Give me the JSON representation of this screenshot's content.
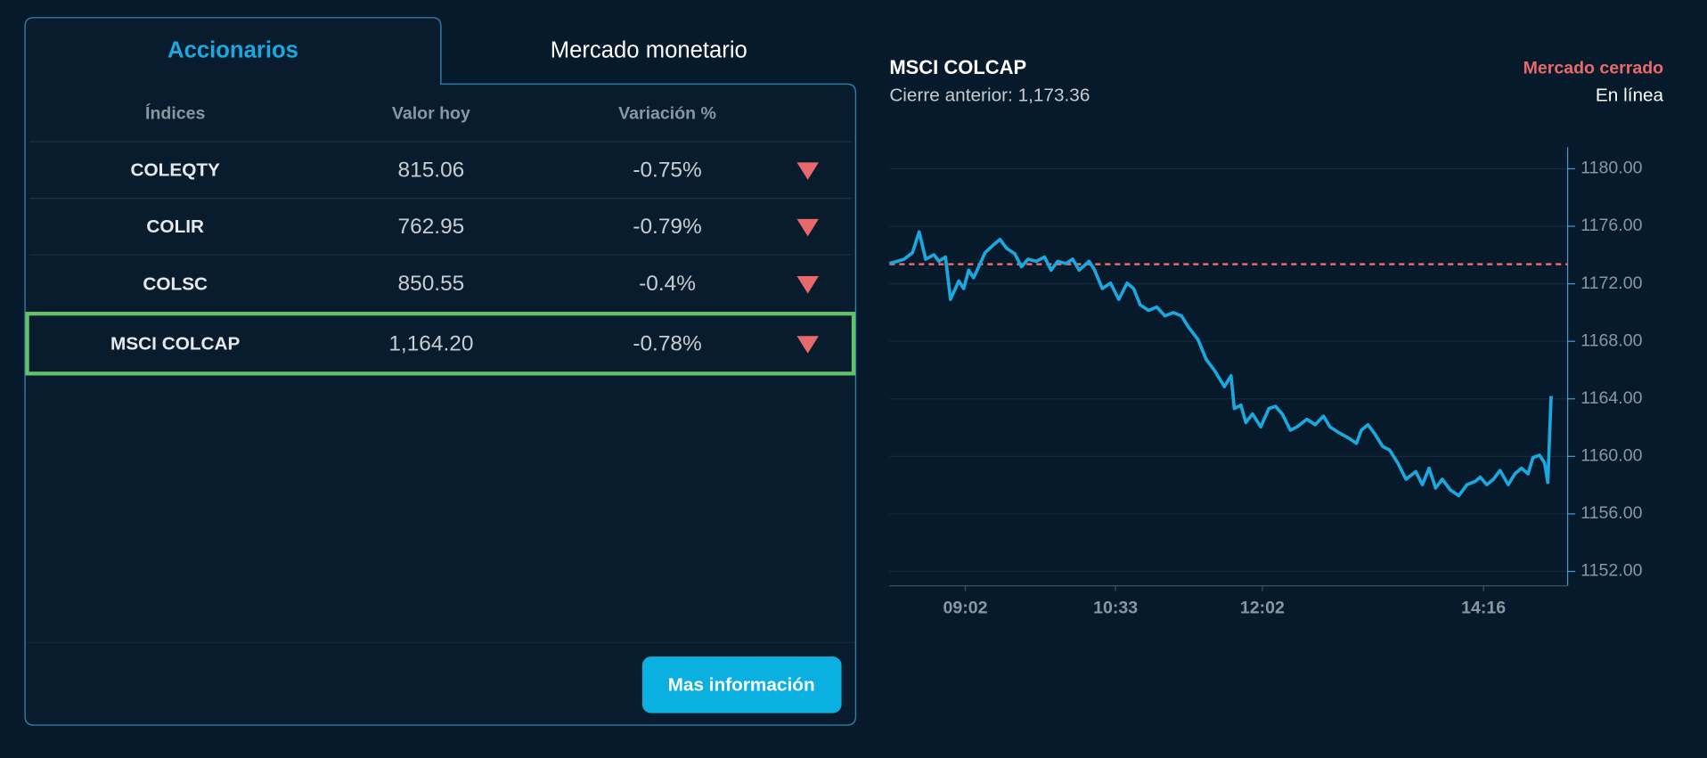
{
  "tabs": [
    "Accionarios",
    "Mercado monetario"
  ],
  "active_tab": 0,
  "table": {
    "headers": [
      "Índices",
      "Valor hoy",
      "Variación %"
    ],
    "rows": [
      [
        "COLEQTY",
        "815.06",
        "-0.75%"
      ],
      [
        "COLIR",
        "762.95",
        "-0.79%"
      ],
      [
        "COLSC",
        "850.55",
        "-0.4%"
      ],
      [
        "MSCI COLCAP",
        "1,164.20",
        "-0.78%"
      ]
    ],
    "selected_row": 3
  },
  "button": "Mas información",
  "chart_data": {
    "type": "line",
    "title": "MSCI COLCAP",
    "subtitle": "Cierre anterior: 1,173.36",
    "status": "Mercado cerrado",
    "status_detail": "En línea",
    "reference_line": 1173.36,
    "reference_color": "#e86a6a",
    "x": [
      496,
      505,
      510,
      514,
      518,
      523,
      526,
      530,
      533,
      538,
      541,
      544,
      547,
      551,
      554,
      559,
      563,
      567,
      572,
      576,
      580,
      585,
      590,
      594,
      598,
      603,
      607,
      611,
      617,
      620,
      625,
      630,
      635,
      640,
      644,
      648,
      653,
      658,
      663,
      668,
      673,
      677,
      683,
      688,
      693,
      699,
      703,
      705,
      709,
      712,
      716,
      721,
      726,
      730,
      734,
      739,
      743,
      749,
      754,
      759,
      763,
      768,
      774,
      779,
      782,
      786,
      790,
      795,
      799,
      804,
      809,
      815,
      819,
      823,
      827,
      831,
      836,
      841,
      846,
      851,
      854,
      858,
      862,
      866,
      871,
      875,
      879,
      883,
      886,
      890,
      893,
      895,
      897
    ],
    "series": [
      {
        "color": "#1aa8de",
        "values": [
          1173.41,
          1173.71,
          1174.17,
          1175.61,
          1173.71,
          1174.02,
          1173.56,
          1173.86,
          1170.91,
          1172.2,
          1171.67,
          1172.95,
          1172.42,
          1173.41,
          1174.17,
          1174.7,
          1175.08,
          1174.47,
          1174.09,
          1173.18,
          1173.71,
          1173.56,
          1173.86,
          1172.95,
          1173.56,
          1173.41,
          1173.71,
          1172.95,
          1173.56,
          1173.03,
          1171.67,
          1172.05,
          1170.91,
          1172.05,
          1171.67,
          1170.53,
          1170.15,
          1170.38,
          1169.77,
          1170,
          1169.77,
          1169.02,
          1168.11,
          1166.74,
          1165.98,
          1164.85,
          1165.61,
          1163.33,
          1163.56,
          1162.35,
          1162.95,
          1162.05,
          1163.33,
          1163.48,
          1162.95,
          1161.82,
          1162.05,
          1162.58,
          1162.2,
          1162.8,
          1162.05,
          1161.67,
          1161.29,
          1160.91,
          1161.82,
          1162.2,
          1161.59,
          1160.68,
          1160.45,
          1159.55,
          1158.41,
          1158.94,
          1158.03,
          1159.17,
          1157.8,
          1158.41,
          1157.65,
          1157.27,
          1158.03,
          1158.26,
          1158.56,
          1158.03,
          1158.41,
          1159.02,
          1158.03,
          1158.79,
          1159.17,
          1158.79,
          1159.92,
          1160.08,
          1159.55,
          1158.18,
          1164.2
        ]
      }
    ],
    "xlim": [
      496,
      907
    ],
    "xticks": [
      {
        "value": 542,
        "label": "09:02"
      },
      {
        "value": 633,
        "label": "10:33"
      },
      {
        "value": 722,
        "label": "12:02"
      },
      {
        "value": 856,
        "label": "14:16"
      }
    ],
    "ylim": [
      1151,
      1181.5
    ],
    "yticks": [
      {
        "value": 1152,
        "label": "1152.00"
      },
      {
        "value": 1156,
        "label": "1156.00"
      },
      {
        "value": 1160,
        "label": "1160.00"
      },
      {
        "value": 1164,
        "label": "1164.00"
      },
      {
        "value": 1168,
        "label": "1168.00"
      },
      {
        "value": 1172,
        "label": "1172.00"
      },
      {
        "value": 1176,
        "label": "1176.00"
      },
      {
        "value": 1180,
        "label": "1180.00"
      }
    ],
    "grid": true
  }
}
